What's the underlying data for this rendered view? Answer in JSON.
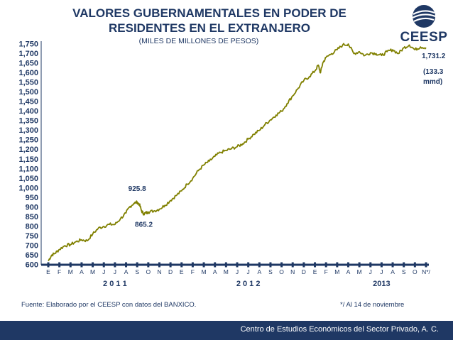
{
  "header": {
    "title_line1": "VALORES GUBERNAMENTALES EN PODER DE",
    "title_line2": "RESIDENTES EN EL EXTRANJERO",
    "subtitle": "(MILES DE MILLONES DE PESOS)",
    "logo_text": "CEESP"
  },
  "chart_data": {
    "type": "line",
    "title": "VALORES GUBERNAMENTALES EN PODER DE RESIDENTES EN EL EXTRANJERO",
    "subtitle": "(MILES DE MILLONES DE PESOS)",
    "ylim": [
      600,
      1750
    ],
    "y_ticks": [
      "600",
      "650",
      "700",
      "750",
      "800",
      "850",
      "900",
      "950",
      "1,000",
      "1,050",
      "1,100",
      "1,150",
      "1,200",
      "1,250",
      "1,300",
      "1,350",
      "1,400",
      "1,450",
      "1,500",
      "1,550",
      "1,600",
      "1,650",
      "1,700",
      "1,750"
    ],
    "month_labels": [
      "E",
      "F",
      "M",
      "A",
      "M",
      "J",
      "J",
      "A",
      "S",
      "O",
      "N",
      "D",
      "E",
      "F",
      "M",
      "A",
      "M",
      "J",
      "J",
      "A",
      "S",
      "O",
      "N",
      "D",
      "E",
      "F",
      "M",
      "A",
      "M",
      "J",
      "J",
      "A",
      "S",
      "O",
      "N*/"
    ],
    "year_labels": [
      {
        "label": "2 0 1 1",
        "month_index": 6
      },
      {
        "label": "2 0 1 2",
        "month_index": 18
      },
      {
        "label": "2013",
        "month_index": 30
      }
    ],
    "grid": false,
    "line_color": "#808000",
    "axis_color": "#1f3864",
    "series": [
      {
        "values": [
          [
            0,
            620
          ],
          [
            0.3,
            650
          ],
          [
            0.6,
            660
          ],
          [
            1,
            680
          ],
          [
            1.5,
            700
          ],
          [
            2,
            705
          ],
          [
            2.5,
            720
          ],
          [
            3,
            730
          ],
          [
            3.5,
            725
          ],
          [
            4,
            760
          ],
          [
            4.5,
            790
          ],
          [
            5,
            800
          ],
          [
            5.5,
            810
          ],
          [
            6,
            810
          ],
          [
            6.5,
            840
          ],
          [
            7,
            870
          ],
          [
            7.3,
            900
          ],
          [
            7.7,
            920
          ],
          [
            8,
            925.8
          ],
          [
            8.2,
            915
          ],
          [
            8.4,
            880
          ],
          [
            8.6,
            865.2
          ],
          [
            8.8,
            870
          ],
          [
            9,
            875
          ],
          [
            9.5,
            880
          ],
          [
            10,
            890
          ],
          [
            10.5,
            910
          ],
          [
            11,
            935
          ],
          [
            11.5,
            960
          ],
          [
            12,
            985
          ],
          [
            12.5,
            1020
          ],
          [
            13,
            1050
          ],
          [
            13.5,
            1090
          ],
          [
            14,
            1120
          ],
          [
            14.5,
            1140
          ],
          [
            15,
            1165
          ],
          [
            15.5,
            1185
          ],
          [
            16,
            1195
          ],
          [
            16.5,
            1205
          ],
          [
            17,
            1215
          ],
          [
            17.5,
            1230
          ],
          [
            18,
            1255
          ],
          [
            18.5,
            1280
          ],
          [
            19,
            1300
          ],
          [
            19.5,
            1330
          ],
          [
            20,
            1355
          ],
          [
            20.5,
            1380
          ],
          [
            21,
            1400
          ],
          [
            21.5,
            1440
          ],
          [
            22,
            1480
          ],
          [
            22.5,
            1520
          ],
          [
            23,
            1560
          ],
          [
            23.5,
            1580
          ],
          [
            24,
            1610
          ],
          [
            24.3,
            1640
          ],
          [
            24.5,
            1600
          ],
          [
            24.7,
            1650
          ],
          [
            25,
            1680
          ],
          [
            25.5,
            1700
          ],
          [
            26,
            1720
          ],
          [
            26.5,
            1745
          ],
          [
            27,
            1750
          ],
          [
            27.5,
            1700
          ],
          [
            28,
            1710
          ],
          [
            28.5,
            1690
          ],
          [
            29,
            1705
          ],
          [
            29.5,
            1700
          ],
          [
            30,
            1690
          ],
          [
            30.5,
            1710
          ],
          [
            31,
            1720
          ],
          [
            31.5,
            1700
          ],
          [
            32,
            1730
          ],
          [
            32.5,
            1745
          ],
          [
            33,
            1720
          ],
          [
            33.5,
            1735
          ],
          [
            34,
            1731.2
          ]
        ]
      }
    ],
    "annotations": [
      {
        "text": "925.8",
        "x": 8,
        "y": 925.8,
        "position": "above"
      },
      {
        "text": "865.2",
        "x": 8.6,
        "y": 865.2,
        "position": "below"
      },
      {
        "text": "1,731.2",
        "x": 34,
        "y": 1731.2,
        "position": "right"
      },
      {
        "text": "(133.3",
        "x": 34,
        "y": 1731.2,
        "position": "right-below"
      },
      {
        "text": "mmd)",
        "x": 34,
        "y": 1731.2,
        "position": "right-below-2"
      }
    ]
  },
  "footer": {
    "source": "Fuente: Elaborado por el CEESP con datos del BANXICO.",
    "note": "*/ Al 14 de noviembre",
    "org": "Centro de Estudios Económicos del Sector Privado, A. C."
  }
}
